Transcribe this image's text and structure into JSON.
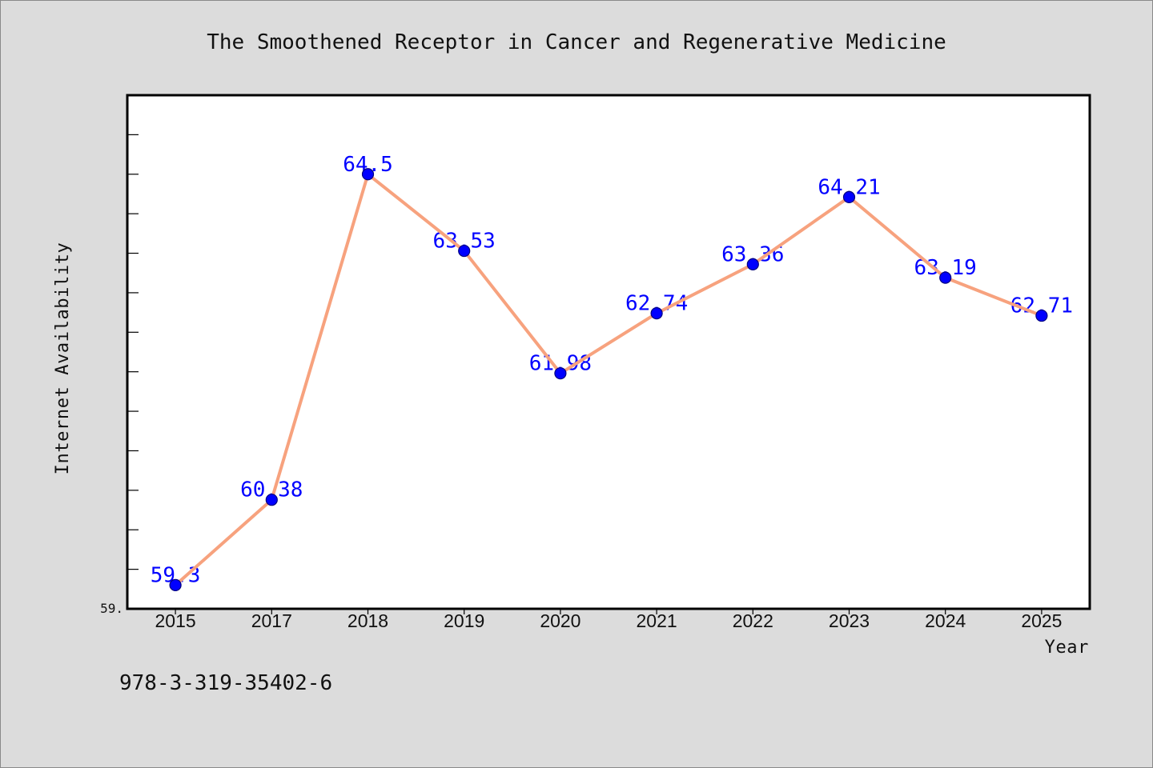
{
  "chart_data": {
    "type": "line",
    "title": "The Smoothened Receptor in Cancer and Regenerative Medicine",
    "xlabel": "Year",
    "ylabel": "Internet Availability",
    "categories": [
      "2015",
      "2017",
      "2018",
      "2019",
      "2020",
      "2021",
      "2022",
      "2023",
      "2024",
      "2025"
    ],
    "values": [
      59.3,
      60.38,
      64.5,
      63.53,
      61.98,
      62.74,
      63.36,
      64.21,
      63.19,
      62.71
    ],
    "ylim": [
      59,
      65.5
    ],
    "y_tick_step": 0.5,
    "y_tick_labels": [
      "59."
    ],
    "grid": false,
    "legend": "none",
    "markers": "circle",
    "data_labels": true
  },
  "footer_text": "978-3-319-35402-6",
  "colors": {
    "figure_background": "#dcdcdc",
    "plot_background": "#ffffff",
    "line": "#f7a27e",
    "marker": "#0000ff",
    "marker_edge": "#000080",
    "data_label": "#0000ff",
    "axis": "#000000"
  }
}
